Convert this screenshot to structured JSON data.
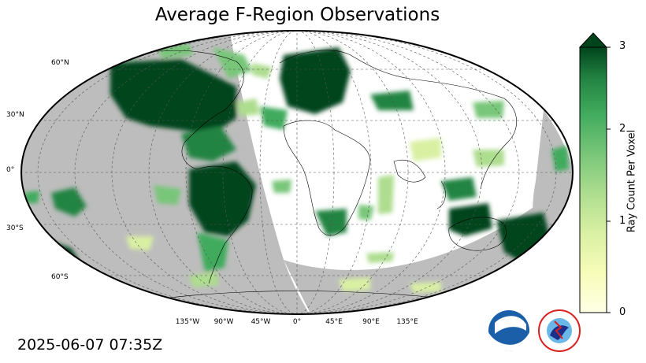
{
  "title": "Average F-Region Observations",
  "timestamp": "2025-06-07 07:35Z",
  "lat_labels": [
    "60°N",
    "30°N",
    "0°",
    "30°S",
    "60°S"
  ],
  "lon_labels": [
    "135°W",
    "90°W",
    "45°W",
    "0°",
    "45°E",
    "90°E",
    "135°E"
  ],
  "colorbar": {
    "label": "Ray Count Per Voxel",
    "ticks": [
      "0",
      "1",
      "2",
      "3"
    ],
    "min": 0,
    "max": 3,
    "extend": "max",
    "cmap": "YlGn"
  },
  "colors": {
    "night_shade": "#bdbdbd",
    "grid": "#555555",
    "dense_green": "#00441b",
    "light_yellow": "#ffffe5"
  },
  "logos": {
    "noaa": "NOAA",
    "nws": "NATIONAL WEATHER SERVICE"
  }
}
